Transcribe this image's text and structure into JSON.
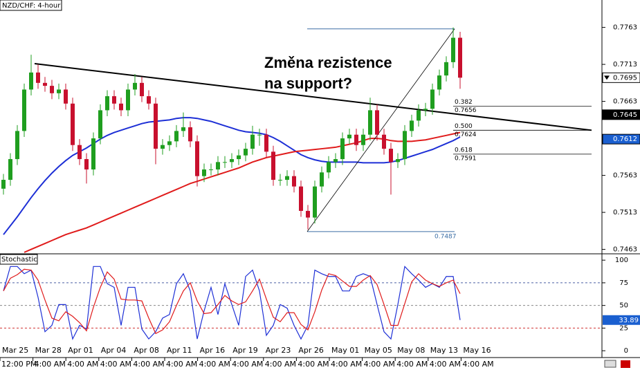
{
  "chart_data": {
    "type": "candlestick",
    "title": "NZD/CHF: 4-hour",
    "annotation": [
      "Změna rezistence",
      "na support?"
    ],
    "up_color": "#1f9e1f",
    "down_color": "#c8102e",
    "ylim": [
      0.7457,
      0.78
    ],
    "yticks": [
      0.7763,
      0.7713,
      0.7663,
      0.7563,
      0.7513,
      0.7463
    ],
    "candles": [
      [
        0.7545,
        0.7565,
        0.7537,
        0.7557
      ],
      [
        0.7557,
        0.7593,
        0.7549,
        0.7585
      ],
      [
        0.7585,
        0.7631,
        0.7577,
        0.7623
      ],
      [
        0.7623,
        0.7687,
        0.7615,
        0.7679
      ],
      [
        0.7679,
        0.7726,
        0.7671,
        0.7702
      ],
      [
        0.7702,
        0.7713,
        0.768,
        0.7688
      ],
      [
        0.7688,
        0.7696,
        0.7676,
        0.7684
      ],
      [
        0.7684,
        0.7692,
        0.7666,
        0.7674
      ],
      [
        0.7674,
        0.7687,
        0.7666,
        0.7679
      ],
      [
        0.7679,
        0.7687,
        0.7652,
        0.766
      ],
      [
        0.766,
        0.7668,
        0.7596,
        0.7604
      ],
      [
        0.7604,
        0.7612,
        0.7577,
        0.7585
      ],
      [
        0.7585,
        0.7593,
        0.7552,
        0.7571
      ],
      [
        0.7571,
        0.7621,
        0.7563,
        0.7613
      ],
      [
        0.7613,
        0.7659,
        0.7605,
        0.7651
      ],
      [
        0.7651,
        0.7678,
        0.7643,
        0.767
      ],
      [
        0.767,
        0.7678,
        0.7652,
        0.766
      ],
      [
        0.766,
        0.7668,
        0.7643,
        0.7651
      ],
      [
        0.7651,
        0.7687,
        0.7643,
        0.7679
      ],
      [
        0.7679,
        0.77,
        0.7671,
        0.7688
      ],
      [
        0.7688,
        0.7696,
        0.7662,
        0.767
      ],
      [
        0.767,
        0.7678,
        0.7652,
        0.766
      ],
      [
        0.766,
        0.7668,
        0.7578,
        0.7599
      ],
      [
        0.7599,
        0.7612,
        0.7591,
        0.7604
      ],
      [
        0.7604,
        0.7617,
        0.7596,
        0.7609
      ],
      [
        0.7609,
        0.7631,
        0.7601,
        0.7623
      ],
      [
        0.7623,
        0.7648,
        0.7615,
        0.7628
      ],
      [
        0.7628,
        0.7636,
        0.7601,
        0.7609
      ],
      [
        0.7609,
        0.7617,
        0.7548,
        0.7562
      ],
      [
        0.7562,
        0.7579,
        0.7554,
        0.7571
      ],
      [
        0.7571,
        0.7579,
        0.7563,
        0.7571
      ],
      [
        0.7571,
        0.7589,
        0.7563,
        0.7581
      ],
      [
        0.7581,
        0.7589,
        0.7573,
        0.7581
      ],
      [
        0.7581,
        0.7593,
        0.7573,
        0.7585
      ],
      [
        0.7585,
        0.7598,
        0.7577,
        0.759
      ],
      [
        0.759,
        0.7607,
        0.7582,
        0.7599
      ],
      [
        0.7599,
        0.763,
        0.7591,
        0.7618
      ],
      [
        0.7618,
        0.7626,
        0.7603,
        0.7618
      ],
      [
        0.7618,
        0.7626,
        0.7587,
        0.7595
      ],
      [
        0.7595,
        0.7603,
        0.7549,
        0.7557
      ],
      [
        0.7557,
        0.7565,
        0.7549,
        0.7557
      ],
      [
        0.7557,
        0.757,
        0.7549,
        0.7562
      ],
      [
        0.7562,
        0.757,
        0.754,
        0.7548
      ],
      [
        0.7548,
        0.7556,
        0.7507,
        0.7515
      ],
      [
        0.7515,
        0.7523,
        0.749,
        0.7506
      ],
      [
        0.7506,
        0.7556,
        0.7498,
        0.7548
      ],
      [
        0.7548,
        0.7575,
        0.754,
        0.7567
      ],
      [
        0.7567,
        0.7589,
        0.7559,
        0.7581
      ],
      [
        0.7581,
        0.7593,
        0.7573,
        0.7585
      ],
      [
        0.7585,
        0.7621,
        0.7577,
        0.7613
      ],
      [
        0.7613,
        0.7626,
        0.7605,
        0.7618
      ],
      [
        0.7618,
        0.7626,
        0.7596,
        0.7604
      ],
      [
        0.7604,
        0.7626,
        0.7596,
        0.7618
      ],
      [
        0.7618,
        0.7668,
        0.761,
        0.7651
      ],
      [
        0.7651,
        0.7659,
        0.761,
        0.7618
      ],
      [
        0.7618,
        0.7626,
        0.7591,
        0.7599
      ],
      [
        0.7599,
        0.7607,
        0.7537,
        0.7581
      ],
      [
        0.7581,
        0.7593,
        0.7573,
        0.7585
      ],
      [
        0.7585,
        0.7631,
        0.7577,
        0.7623
      ],
      [
        0.7623,
        0.7645,
        0.7615,
        0.7637
      ],
      [
        0.7637,
        0.7659,
        0.7629,
        0.7651
      ],
      [
        0.7651,
        0.7661,
        0.7643,
        0.7653
      ],
      [
        0.7653,
        0.7687,
        0.7645,
        0.7679
      ],
      [
        0.7679,
        0.7706,
        0.7671,
        0.7698
      ],
      [
        0.7698,
        0.7724,
        0.769,
        0.7716
      ],
      [
        0.7716,
        0.7763,
        0.7708,
        0.7749
      ],
      [
        0.7749,
        0.7757,
        0.768,
        0.7695
      ]
    ],
    "moving_averages": [
      {
        "color": "#1d2fd6",
        "values": [
          0.7483,
          0.7495,
          0.7507,
          0.752,
          0.7533,
          0.7545,
          0.7556,
          0.7566,
          0.7575,
          0.7583,
          0.759,
          0.7595,
          0.76,
          0.7606,
          0.7612,
          0.7617,
          0.7621,
          0.7624,
          0.7627,
          0.763,
          0.7633,
          0.7635,
          0.7636,
          0.7637,
          0.7638,
          0.764,
          0.7641,
          0.7641,
          0.764,
          0.7638,
          0.7636,
          0.7633,
          0.763,
          0.7627,
          0.7624,
          0.7622,
          0.7621,
          0.762,
          0.7618,
          0.7614,
          0.7609,
          0.7603,
          0.7597,
          0.7591,
          0.7587,
          0.7584,
          0.7582,
          0.7581,
          0.7581,
          0.7581,
          0.7581,
          0.7581,
          0.758,
          0.758,
          0.758,
          0.758,
          0.7581,
          0.7583,
          0.7586,
          0.7589,
          0.7592,
          0.7595,
          0.7598,
          0.7602,
          0.7606,
          0.761,
          0.7615
        ]
      },
      {
        "color": "#e01b1b",
        "values": [
          null,
          null,
          null,
          0.7459,
          0.7463,
          0.7467,
          0.7471,
          0.7475,
          0.7479,
          0.7483,
          0.7486,
          0.7489,
          0.7492,
          0.7496,
          0.75,
          0.7504,
          0.7508,
          0.7512,
          0.7516,
          0.752,
          0.7524,
          0.7528,
          0.7532,
          0.7536,
          0.754,
          0.7544,
          0.7548,
          0.7552,
          0.7555,
          0.7558,
          0.7561,
          0.7564,
          0.7567,
          0.757,
          0.7573,
          0.7577,
          0.7581,
          0.7584,
          0.7587,
          0.7589,
          0.7591,
          0.7593,
          0.7595,
          0.7596,
          0.7597,
          0.7598,
          0.7599,
          0.76,
          0.7601,
          0.7603,
          0.7605,
          0.7607,
          0.761,
          0.7613,
          0.7613,
          0.7612,
          0.761,
          0.7609,
          0.7609,
          0.7609,
          0.761,
          0.7611,
          0.7613,
          0.7615,
          0.7617,
          0.7619,
          0.7621
        ]
      }
    ],
    "trendline": [
      0.7714,
      0.7624
    ],
    "fib": {
      "high": 0.7761,
      "low": 0.7487,
      "ratios": [
        0.382,
        0.5,
        0.618
      ],
      "ratio_labels": [
        "0.382",
        "0.500",
        "0.618"
      ],
      "prices": [
        0.7656,
        0.7624,
        0.7591
      ]
    },
    "price_markers": [
      0.7695,
      0.7645,
      0.7612
    ],
    "x_dates": [
      "Mar 25",
      "Mar 28",
      "Apr 01",
      "Apr 04",
      "Apr 08",
      "Apr 11",
      "Apr 16",
      "Apr 19",
      "Apr 23",
      "Apr 26",
      "May 01",
      "May 05",
      "May 08",
      "May 13",
      "May 16"
    ],
    "x_times": [
      "12:00 PM",
      "4:00 AM",
      "4:00 AM",
      "4:00 AM",
      "4:00 AM",
      "4:00 AM",
      "4:00 AM",
      "4:00 AM",
      "4:00 AM",
      "4:00 AM",
      "4:00 AM",
      "4:00 AM",
      "4:00 AM",
      "4:00 AM",
      "4:00 AM"
    ],
    "stochastic": {
      "title": "Stochastic",
      "ylim": [
        -6,
        107
      ],
      "yticks": [
        100,
        75,
        50,
        25,
        0
      ],
      "levels": [
        75,
        50,
        25
      ],
      "series": [
        {
          "color": "#1d2fd6",
          "values": [
            66,
            93,
            93,
            85,
            89,
            59,
            21,
            28,
            51,
            51,
            13,
            28,
            24,
            93,
            93,
            74,
            70,
            28,
            70,
            70,
            24,
            13,
            21,
            36,
            40,
            74,
            85,
            66,
            13,
            44,
            70,
            40,
            74,
            51,
            28,
            82,
            89,
            66,
            17,
            28,
            51,
            47,
            28,
            13,
            28,
            89,
            85,
            82,
            82,
            66,
            66,
            82,
            85,
            82,
            51,
            21,
            13,
            51,
            93,
            85,
            78,
            70,
            74,
            70,
            82,
            82,
            33.89
          ]
        },
        {
          "color": "#e01b1b",
          "values": [
            66,
            80,
            84,
            90,
            89,
            78,
            56,
            36,
            33,
            43,
            38,
            31,
            22,
            48,
            70,
            87,
            79,
            57,
            56,
            56,
            55,
            36,
            19,
            23,
            32,
            50,
            66,
            75,
            55,
            41,
            42,
            51,
            61,
            55,
            51,
            54,
            66,
            79,
            57,
            37,
            32,
            42,
            42,
            29,
            23,
            43,
            67,
            85,
            83,
            77,
            71,
            71,
            78,
            83,
            73,
            51,
            28,
            28,
            52,
            76,
            85,
            78,
            74,
            71,
            75,
            78,
            63
          ]
        }
      ]
    }
  }
}
